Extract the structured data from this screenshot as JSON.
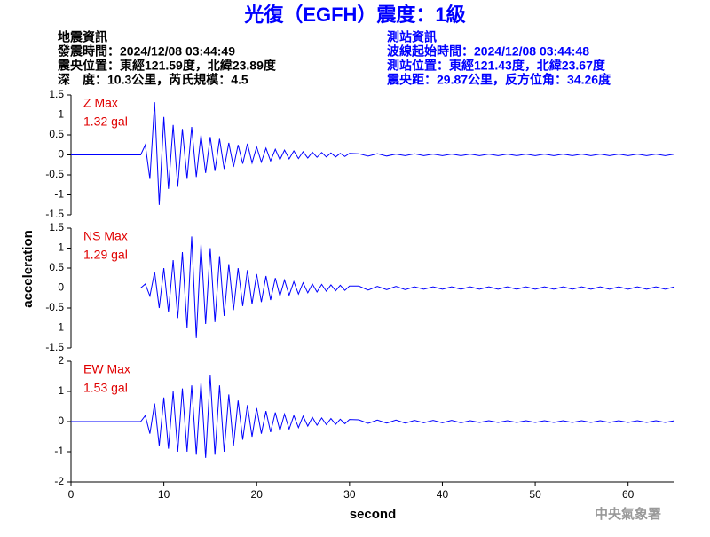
{
  "header": {
    "title": "光復（EGFH）震度：1級",
    "left": [
      "地震資訊",
      "發震時間：2024/12/08 03:44:49",
      "震央位置：東經121.59度，北緯23.89度",
      "深　度：10.3公里，芮氏規模：4.5"
    ],
    "right": [
      "測站資訊",
      "波線起始時間：2024/12/08 03:44:48",
      "測站位置：東經121.43度，北緯23.67度",
      "震央距：29.87公里，反方位角：34.26度"
    ]
  },
  "x_label": "second",
  "y_label": "acceleration",
  "footer": "中央氣象署",
  "chart_data": [
    {
      "type": "line",
      "label": "Z Max",
      "max_label": "1.32 gal",
      "color": "#0000ff",
      "xlim": [
        0,
        65
      ],
      "ylim": [
        -1.5,
        1.5
      ],
      "yticks": [
        -1.5,
        -1,
        -0.5,
        0,
        0.5,
        1,
        1.5
      ],
      "x": [
        0,
        7.5,
        8,
        8.5,
        9,
        9.5,
        10,
        10.5,
        11,
        11.5,
        12,
        12.5,
        13,
        13.5,
        14,
        14.5,
        15,
        15.5,
        16,
        16.5,
        17,
        17.5,
        18,
        18.5,
        19,
        19.5,
        20,
        20.5,
        21,
        21.5,
        22,
        22.5,
        23,
        23.5,
        24,
        24.5,
        25,
        25.5,
        26,
        26.5,
        27,
        27.5,
        28,
        28.5,
        29,
        29.5,
        30,
        31,
        32,
        33,
        34,
        35,
        36,
        37,
        38,
        39,
        40,
        41,
        42,
        43,
        44,
        45,
        46,
        47,
        48,
        49,
        50,
        51,
        52,
        53,
        54,
        55,
        56,
        57,
        58,
        59,
        60,
        61,
        62,
        63,
        64,
        65
      ],
      "values": [
        0,
        0,
        0.25,
        -0.6,
        1.32,
        -1.25,
        0.95,
        -0.85,
        0.75,
        -0.8,
        0.65,
        -0.6,
        0.7,
        -0.55,
        0.5,
        -0.45,
        0.45,
        -0.4,
        0.4,
        -0.35,
        0.3,
        -0.3,
        0.25,
        -0.22,
        0.28,
        -0.2,
        0.2,
        -0.18,
        0.17,
        -0.15,
        0.14,
        -0.12,
        0.12,
        -0.1,
        0.1,
        -0.09,
        0.08,
        -0.08,
        0.07,
        -0.06,
        0.06,
        -0.05,
        0.05,
        -0.05,
        0.04,
        -0.04,
        0.04,
        0.03,
        -0.03,
        0.03,
        -0.03,
        0.02,
        -0.02,
        0.03,
        -0.02,
        0.02,
        -0.02,
        0.02,
        -0.02,
        0.02,
        -0.02,
        0.02,
        -0.02,
        0.02,
        -0.02,
        0.02,
        -0.02,
        0.02,
        -0.02,
        0.02,
        -0.02,
        0.02,
        -0.02,
        0.02,
        -0.02,
        0.02,
        -0.02,
        0.02,
        -0.02,
        0.02,
        -0.02,
        0.02
      ]
    },
    {
      "type": "line",
      "label": "NS Max",
      "max_label": "1.29 gal",
      "color": "#0000ff",
      "xlim": [
        0,
        65
      ],
      "ylim": [
        -1.5,
        1.5
      ],
      "yticks": [
        -1.5,
        -1,
        -0.5,
        0,
        0.5,
        1,
        1.5
      ],
      "x": [
        0,
        7.5,
        8,
        8.5,
        9,
        9.5,
        10,
        10.5,
        11,
        11.5,
        12,
        12.5,
        13,
        13.5,
        14,
        14.5,
        15,
        15.5,
        16,
        16.5,
        17,
        17.5,
        18,
        18.5,
        19,
        19.5,
        20,
        20.5,
        21,
        21.5,
        22,
        22.5,
        23,
        23.5,
        24,
        24.5,
        25,
        25.5,
        26,
        26.5,
        27,
        27.5,
        28,
        28.5,
        29,
        29.5,
        30,
        31,
        32,
        33,
        34,
        35,
        36,
        37,
        38,
        39,
        40,
        41,
        42,
        43,
        44,
        45,
        46,
        47,
        48,
        49,
        50,
        51,
        52,
        53,
        54,
        55,
        56,
        57,
        58,
        59,
        60,
        61,
        62,
        63,
        64,
        65
      ],
      "values": [
        0,
        0,
        0.1,
        -0.2,
        0.4,
        -0.5,
        0.5,
        -0.6,
        0.7,
        -0.75,
        0.9,
        -1.0,
        1.29,
        -1.25,
        1.1,
        -0.9,
        1.0,
        -0.85,
        0.8,
        -0.7,
        0.6,
        -0.55,
        0.5,
        -0.45,
        0.45,
        -0.4,
        0.35,
        -0.35,
        0.3,
        -0.3,
        0.25,
        -0.2,
        0.2,
        -0.18,
        0.16,
        -0.15,
        0.13,
        -0.12,
        0.1,
        -0.1,
        0.09,
        -0.08,
        0.08,
        -0.07,
        0.07,
        -0.06,
        0.05,
        0.05,
        -0.05,
        0.04,
        -0.04,
        0.04,
        -0.04,
        0.03,
        -0.03,
        0.03,
        -0.03,
        0.03,
        -0.03,
        0.03,
        -0.03,
        0.03,
        -0.03,
        0.03,
        -0.03,
        0.03,
        -0.03,
        0.03,
        -0.03,
        0.03,
        -0.03,
        0.03,
        -0.03,
        0.03,
        -0.03,
        0.03,
        -0.03,
        0.03,
        -0.03,
        0.03,
        -0.03,
        0.03
      ]
    },
    {
      "type": "line",
      "label": "EW Max",
      "max_label": "1.53 gal",
      "color": "#0000ff",
      "xlim": [
        0,
        65
      ],
      "ylim": [
        -2,
        2
      ],
      "yticks": [
        -2,
        -1,
        0,
        1,
        2
      ],
      "xticks": [
        0,
        10,
        20,
        30,
        40,
        50,
        60
      ],
      "x": [
        0,
        7.5,
        8,
        8.5,
        9,
        9.5,
        10,
        10.5,
        11,
        11.5,
        12,
        12.5,
        13,
        13.5,
        14,
        14.5,
        15,
        15.5,
        16,
        16.5,
        17,
        17.5,
        18,
        18.5,
        19,
        19.5,
        20,
        20.5,
        21,
        21.5,
        22,
        22.5,
        23,
        23.5,
        24,
        24.5,
        25,
        25.5,
        26,
        26.5,
        27,
        27.5,
        28,
        28.5,
        29,
        29.5,
        30,
        31,
        32,
        33,
        34,
        35,
        36,
        37,
        38,
        39,
        40,
        41,
        42,
        43,
        44,
        45,
        46,
        47,
        48,
        49,
        50,
        51,
        52,
        53,
        54,
        55,
        56,
        57,
        58,
        59,
        60,
        61,
        62,
        63,
        64,
        65
      ],
      "values": [
        0,
        0,
        0.2,
        -0.4,
        0.6,
        -0.8,
        0.8,
        -0.9,
        1.0,
        -1.0,
        1.1,
        -1.0,
        1.2,
        -1.1,
        1.3,
        -1.2,
        1.53,
        -1.1,
        1.2,
        -1.0,
        0.9,
        -0.8,
        0.7,
        -0.6,
        0.55,
        -0.5,
        0.45,
        -0.4,
        0.35,
        -0.35,
        0.3,
        -0.3,
        0.25,
        -0.25,
        0.2,
        -0.2,
        0.18,
        -0.15,
        0.14,
        -0.12,
        0.12,
        -0.1,
        0.1,
        -0.09,
        0.08,
        -0.07,
        0.07,
        0.06,
        -0.06,
        0.05,
        -0.05,
        0.05,
        -0.05,
        0.04,
        -0.04,
        0.04,
        -0.04,
        0.04,
        -0.04,
        0.03,
        -0.03,
        0.03,
        -0.03,
        0.03,
        -0.03,
        0.03,
        -0.03,
        0.03,
        -0.03,
        0.03,
        -0.03,
        0.03,
        -0.03,
        0.03,
        -0.03,
        0.03,
        -0.03,
        0.03,
        -0.03,
        0.03,
        -0.03,
        0.03
      ]
    }
  ]
}
